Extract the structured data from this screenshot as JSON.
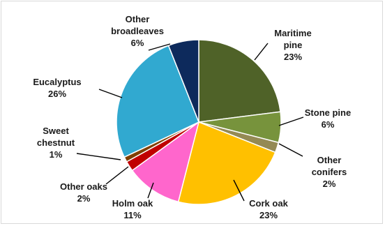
{
  "chart_data": {
    "type": "pie",
    "slices": [
      {
        "label": "Maritime pine",
        "value": 23,
        "pct_label": "23%",
        "color": "#4f6228"
      },
      {
        "label": "Stone pine",
        "value": 6,
        "pct_label": "6%",
        "color": "#77933c"
      },
      {
        "label": "Other conifers",
        "value": 2,
        "pct_label": "2%",
        "color": "#948a54"
      },
      {
        "label": "Cork oak",
        "value": 23,
        "pct_label": "23%",
        "color": "#ffc000"
      },
      {
        "label": "Holm oak",
        "value": 11,
        "pct_label": "11%",
        "color": "#ff66cc"
      },
      {
        "label": "Other oaks",
        "value": 2,
        "pct_label": "2%",
        "color": "#c00000"
      },
      {
        "label": "Sweet chestnut",
        "value": 1,
        "pct_label": "1%",
        "color": "#7f3f00"
      },
      {
        "label": "Eucalyptus",
        "value": 26,
        "pct_label": "26%",
        "color": "#31a9d0"
      },
      {
        "label": "Other broadleaves",
        "value": 6,
        "pct_label": "6%",
        "color": "#0d2a5c"
      }
    ],
    "label_lines": [
      [
        "Maritime",
        "pine",
        "23%"
      ],
      [
        "Stone pine",
        "6%"
      ],
      [
        "Other",
        "conifers",
        "2%"
      ],
      [
        "Cork oak",
        "23%"
      ],
      [
        "Holm oak",
        "11%"
      ],
      [
        "Other oaks",
        "2%"
      ],
      [
        "Sweet",
        "chestnut",
        "1%"
      ],
      [
        "Eucalyptus",
        "26%"
      ],
      [
        "Other",
        "broadleaves",
        "6%"
      ]
    ],
    "start": "12 o'clock",
    "direction": "clockwise",
    "legend": "none (category data labels)"
  }
}
